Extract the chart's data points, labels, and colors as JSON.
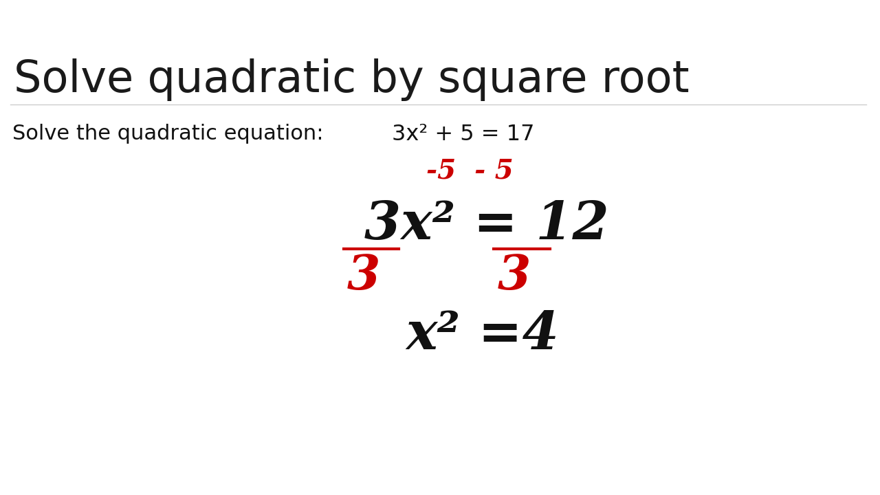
{
  "title": "Solve quadratic by square root",
  "subtitle": "Solve the quadratic equation:",
  "equation": "3x² + 5 = 17",
  "step1_red": "-5  - 5",
  "step2_black_parts": [
    "3x",
    "²",
    " = 12"
  ],
  "step4_black": "x²=4",
  "bg_color": "#ffffff",
  "header_bar_color": "#b8b0d0",
  "title_color": "#1a1a1a",
  "black_text": "#111111",
  "red_text": "#cc0000",
  "divider_color": "#cccccc"
}
